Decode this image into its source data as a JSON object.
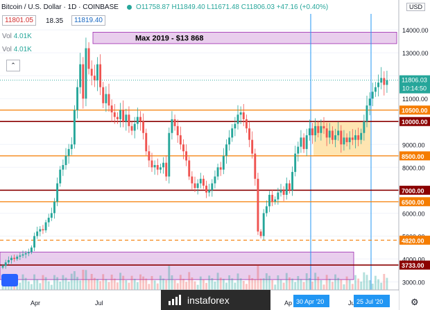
{
  "header": {
    "symbol": "Bitcoin / U.S. Dollar · 1D · COINBASE",
    "ohlc": "O11758.87 H11849.40 L11671.48 C11806.03 +47.16 (+0.40%)",
    "bid": "11801.05",
    "spread": "18.35",
    "ask": "11819.40"
  },
  "volume": {
    "row1_label": "Vol",
    "row1_value": "4.01K",
    "row2_label": "Vol",
    "row2_value": "4.01K"
  },
  "currency_label": "USD",
  "collapse_glyph": "⌃",
  "gear_glyph": "⚙",
  "watermark": "instaforex",
  "colors": {
    "up": "#26a69a",
    "down": "#ef5350",
    "orange_line": "#f57c00",
    "red_line": "#8b0000",
    "zone": "#e1bee7",
    "consolidation": "#ffe0a3",
    "accent": "#2196f3"
  },
  "chart_data": {
    "type": "candlestick",
    "ylim": [
      2500,
      15000
    ],
    "yticks": [
      3000,
      4000,
      5000,
      6000,
      7000,
      8000,
      9000,
      10000,
      11000,
      12000,
      13000,
      14000
    ],
    "x_labels": [
      "Apr",
      "Jul",
      "Ap",
      "Ju"
    ],
    "date_badges": [
      "30 Apr '20",
      "25 Jul '20"
    ],
    "price_close": 11806.03,
    "price_label": "11806.03",
    "countdown_label": "10:14:50",
    "levels": [
      {
        "value": 10500,
        "label": "10500.00",
        "kind": "orange"
      },
      {
        "value": 10000,
        "label": "10000.00",
        "kind": "red"
      },
      {
        "value": 8500,
        "label": "8500.00",
        "kind": "orange"
      },
      {
        "value": 7000,
        "label": "7000.00",
        "kind": "red"
      },
      {
        "value": 6500,
        "label": "6500.00",
        "kind": "orange"
      },
      {
        "value": 4820,
        "label": "4820.00",
        "kind": "orange-dashed"
      },
      {
        "value": 3733,
        "label": "3733.00",
        "kind": "red"
      }
    ],
    "zones": [
      {
        "from": 13400,
        "to": 13900,
        "label": "Max 2019  - $13 868"
      },
      {
        "from": 3100,
        "to": 4300,
        "label": ""
      }
    ],
    "consolidation": {
      "from": 8500,
      "to": 10000
    },
    "closes": [
      3700,
      3850,
      3950,
      4050,
      4000,
      4100,
      4150,
      4200,
      4250,
      4300,
      4500,
      5000,
      5200,
      5300,
      5250,
      5600,
      5800,
      6000,
      6500,
      7300,
      7900,
      8100,
      8500,
      8800,
      9000,
      10500,
      11500,
      12500,
      11000,
      13200,
      12300,
      12000,
      11800,
      12500,
      11500,
      10800,
      11200,
      10700,
      10400,
      10200,
      10100,
      10500,
      10000,
      10300,
      9800,
      9600,
      9900,
      10200,
      10000,
      9500,
      8700,
      8300,
      8000,
      8100,
      7900,
      8000,
      8200,
      7600,
      9500,
      10100,
      9800,
      9400,
      9000,
      8700,
      8300,
      7600,
      7300,
      7100,
      7300,
      7500,
      7200,
      6900,
      7000,
      7300,
      7600,
      8000,
      7900,
      8500,
      9000,
      9300,
      9700,
      9900,
      10300,
      10400,
      10100,
      9700,
      9200,
      8600,
      7500,
      5200,
      5000,
      6000,
      6300,
      6800,
      6500,
      6600,
      6900,
      7000,
      6800,
      7300,
      7000,
      7800,
      8600,
      8900,
      9300,
      8800,
      9400,
      9700,
      9400,
      9800,
      9500,
      9800,
      9700,
      9300,
      9600,
      9200,
      9400,
      9600,
      9000,
      9300,
      9100,
      9300,
      9200,
      9400,
      9200,
      9500,
      10000,
      10700,
      11000,
      11300,
      11500,
      11700,
      11900,
      11600,
      11806
    ]
  }
}
